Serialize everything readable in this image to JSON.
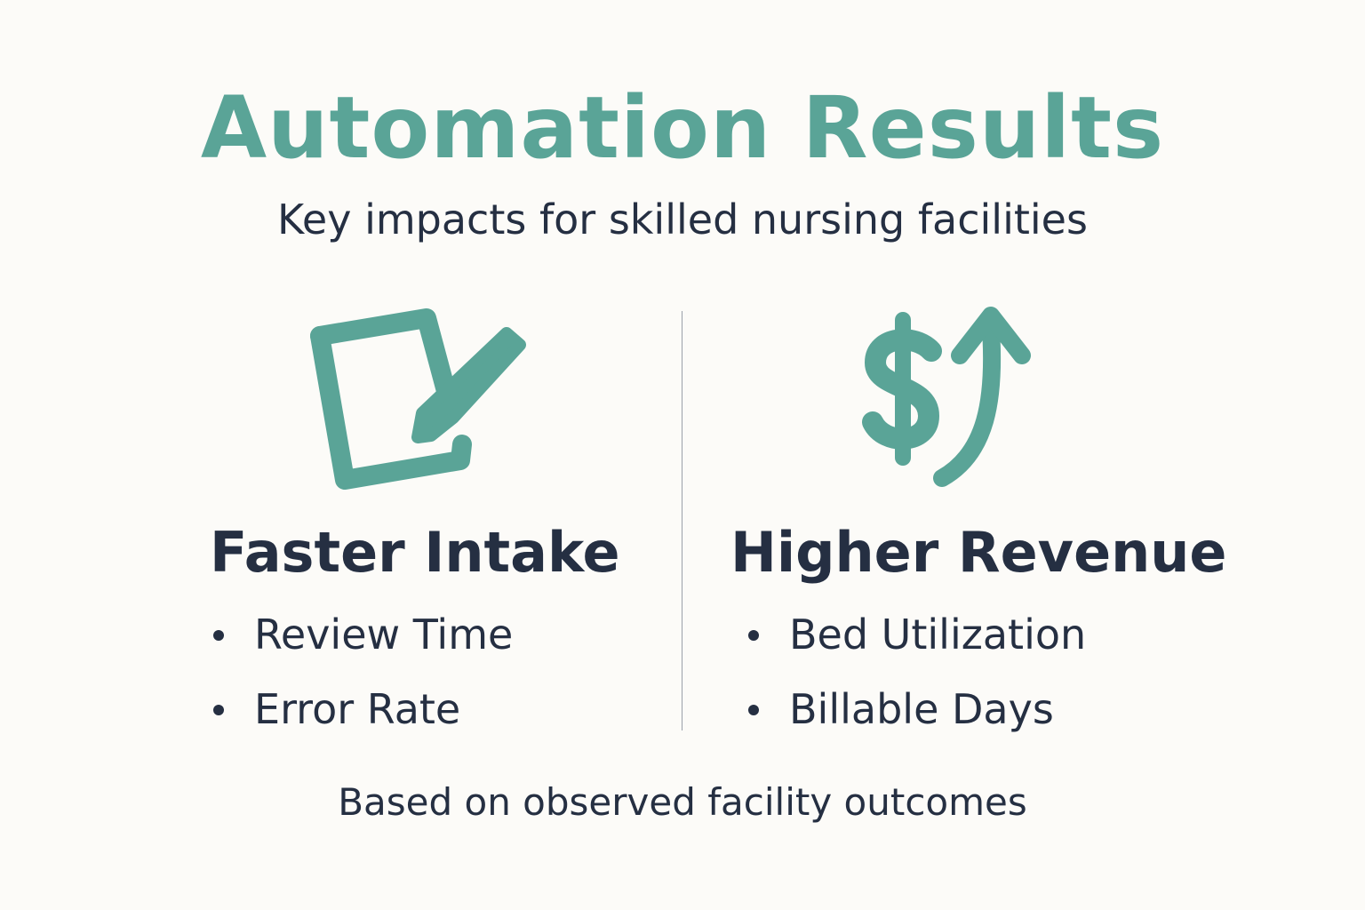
{
  "header": {
    "title": "Automation Results",
    "subtitle": "Key impacts for skilled nursing facilities"
  },
  "columns": [
    {
      "heading": "Faster Intake",
      "items": [
        "Review Time",
        "Error Rate"
      ]
    },
    {
      "heading": "Higher Revenue",
      "items": [
        "Bed Utilization",
        "Billable Days"
      ]
    }
  ],
  "footer": "Based on observed facility outcomes"
}
